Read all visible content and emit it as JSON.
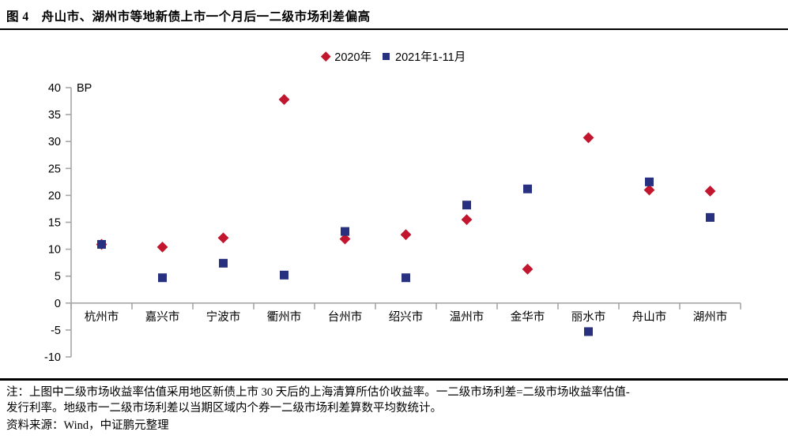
{
  "title": "图 4　舟山市、湖州市等地新债上市一个月后一二级市场利差偏高",
  "chart_data": {
    "type": "scatter",
    "unit_label": "BP",
    "categories": [
      "杭州市",
      "嘉兴市",
      "宁波市",
      "衢州市",
      "台州市",
      "绍兴市",
      "温州市",
      "金华市",
      "丽水市",
      "舟山市",
      "湖州市"
    ],
    "series": [
      {
        "name": "2020年",
        "marker": "diamond",
        "color": "#C2162E",
        "values": [
          10.9,
          10.4,
          12.1,
          37.8,
          11.9,
          12.7,
          15.5,
          6.3,
          30.7,
          21.0,
          20.8
        ]
      },
      {
        "name": "2021年1-11月",
        "marker": "square",
        "color": "#283180",
        "values": [
          10.9,
          4.7,
          7.4,
          5.2,
          13.3,
          4.7,
          18.2,
          21.2,
          -5.3,
          22.5,
          15.9
        ]
      }
    ],
    "ylim": [
      -10,
      40
    ],
    "yticks": [
      40,
      35,
      30,
      25,
      20,
      15,
      10,
      5,
      0,
      -5,
      -10
    ],
    "grid": false,
    "legend_position": "top-center",
    "axis_color": "#A6A6A6",
    "text_color": "#000000"
  },
  "note": {
    "lines": [
      "注：上图中二级市场收益率估值采用地区新债上市 30 天后的上海清算所估价收益率。一二级市场利差=二级市场收益率估值-",
      "发行利率。地级市一二级市场利差以当期区域内个券一二级市场利差算数平均数统计。"
    ],
    "source": "资料来源：Wind，中证鹏元整理"
  }
}
